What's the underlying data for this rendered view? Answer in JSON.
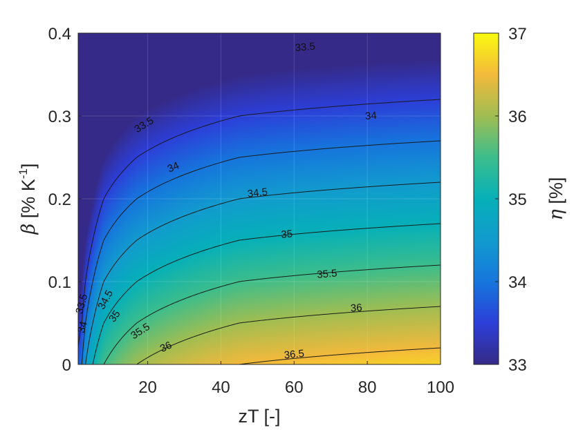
{
  "chart_data": {
    "type": "heatmap",
    "title": "",
    "xlabel": "zT [-]",
    "ylabel": {
      "symbol": "β",
      "text_before_sup": " [% K",
      "superscript": "-1",
      "text_after_sup": "]"
    },
    "colorbar_label": {
      "symbol": "η",
      "text": " [%]"
    },
    "xlim": [
      1,
      100
    ],
    "ylim": [
      0,
      0.4
    ],
    "clim": [
      33,
      37
    ],
    "x_ticks": [
      20,
      40,
      60,
      80,
      100
    ],
    "x_tick_labels": [
      "20",
      "40",
      "60",
      "80",
      "100"
    ],
    "y_ticks": [
      0,
      0.1,
      0.2,
      0.3,
      0.4
    ],
    "y_tick_labels": [
      "0",
      "0.1",
      "0.2",
      "0.3",
      "0.4"
    ],
    "colorbar_ticks": [
      33,
      34,
      35,
      36,
      37
    ],
    "colorbar_tick_labels": [
      "33",
      "34",
      "35",
      "36",
      "37"
    ],
    "colormap": "parula",
    "grid": true,
    "contour_levels": [
      33.5,
      34,
      34.5,
      35,
      35.5,
      36,
      36.5
    ],
    "model": {
      "description_of_surface": "eta = E(zT) - 10*beta",
      "E_zT": [
        [
          1,
          33.7
        ],
        [
          2,
          34.0
        ],
        [
          3,
          34.5
        ],
        [
          5,
          35.0
        ],
        [
          8,
          35.5
        ],
        [
          17,
          36.0
        ],
        [
          45,
          36.5
        ],
        [
          100,
          36.7
        ]
      ]
    },
    "contour_labels": [
      {
        "level": 33.5,
        "text": "33.5",
        "x": 63,
        "y": 0.383
      },
      {
        "level": 33.5,
        "text": "33.5",
        "x": 19,
        "y": 0.289
      },
      {
        "level": 33.5,
        "text": "33.5",
        "x": 2.0,
        "y": 0.073
      },
      {
        "level": 34,
        "text": "34",
        "x": 81,
        "y": 0.3
      },
      {
        "level": 34,
        "text": "34",
        "x": 27,
        "y": 0.238
      },
      {
        "level": 34,
        "text": "34",
        "x": 2.2,
        "y": 0.045
      },
      {
        "level": 34.5,
        "text": "34.5",
        "x": 50,
        "y": 0.207
      },
      {
        "level": 34.5,
        "text": "34.5",
        "x": 8.5,
        "y": 0.078
      },
      {
        "level": 35,
        "text": "35",
        "x": 58,
        "y": 0.157
      },
      {
        "level": 35,
        "text": "35",
        "x": 11,
        "y": 0.058
      },
      {
        "level": 35.5,
        "text": "35.5",
        "x": 69,
        "y": 0.109
      },
      {
        "level": 35.5,
        "text": "35.5",
        "x": 18,
        "y": 0.04
      },
      {
        "level": 36,
        "text": "36",
        "x": 77,
        "y": 0.068
      },
      {
        "level": 36,
        "text": "36",
        "x": 25,
        "y": 0.021
      },
      {
        "level": 36.5,
        "text": "36.5",
        "x": 60,
        "y": 0.012
      }
    ]
  },
  "colors": {
    "axis": "#262626",
    "grid": "#ffffff",
    "contour": "#1a1a1a",
    "background": "#ffffff"
  }
}
